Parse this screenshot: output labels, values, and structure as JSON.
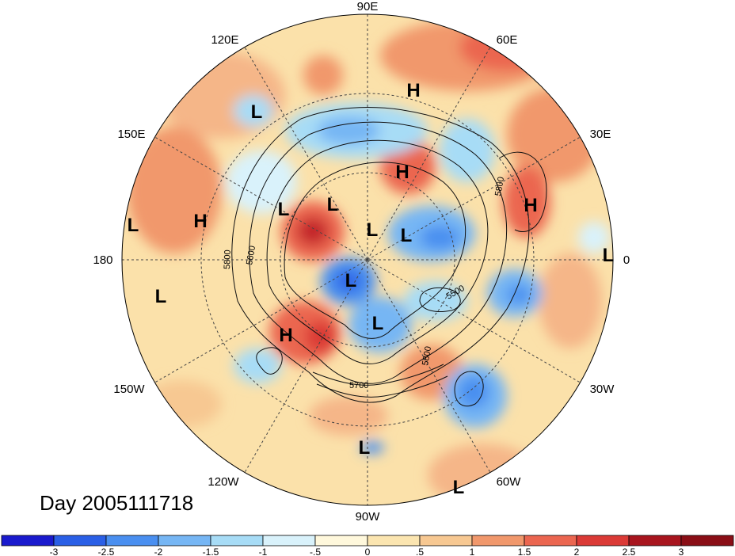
{
  "title_label": "Day 2005111718",
  "longitude_labels": {
    "top": "90E",
    "top_left": "120E",
    "top_right": "60E",
    "upper_left": "150E",
    "upper_right": "30E",
    "left": "180",
    "right": "0",
    "lower_left": "150W",
    "lower_right": "30W",
    "bottom_left": "120W",
    "bottom_right": "60W",
    "bottom": "90W"
  },
  "contour_labels": [
    "5800",
    "5600",
    "5800",
    "5500",
    "5800",
    "5700"
  ],
  "pressure_centers": [
    "H",
    "L",
    "H",
    "L",
    "L",
    "H",
    "L",
    "L",
    "L",
    "H",
    "L",
    "L",
    "L",
    "H",
    "L",
    "L"
  ],
  "colorbar": {
    "ticks": [
      "-3",
      "-2.5",
      "-2",
      "-1.5",
      "-1",
      "-.5",
      "0",
      ".5",
      "1",
      "1.5",
      "2",
      "2.5",
      "3"
    ],
    "colors": [
      "#1a1acd",
      "#2a5fe6",
      "#4a8ff0",
      "#76b6f4",
      "#a7dcf6",
      "#d9f2fb",
      "#fff8dc",
      "#fbe5b0",
      "#f7c892",
      "#f1986c",
      "#eb6650",
      "#db3a36",
      "#a8151e",
      "#8a0e16"
    ]
  },
  "colors": {
    "background_warm": "#fbe1aa",
    "strong_warm": "#eb6650",
    "cool": "#76b6f4",
    "grid": "#444444"
  }
}
